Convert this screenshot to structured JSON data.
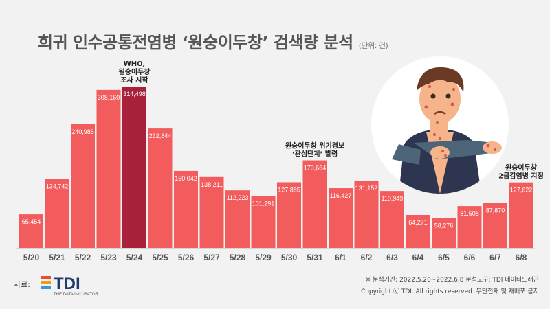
{
  "header": {
    "title": "희귀 인수공통전염병 ‘원숭이두창’ 검색량 분석",
    "unit": "(단위: 건)"
  },
  "chart_data": {
    "type": "bar",
    "title": "희귀 인수공통전염병 ‘원숭이두창’ 검색량 분석",
    "unit": "(단위: 건)",
    "categories": [
      "5/20",
      "5/21",
      "5/22",
      "5/23",
      "5/24",
      "5/25",
      "5/26",
      "5/27",
      "5/28",
      "5/29",
      "5/30",
      "5/31",
      "6/1",
      "6/2",
      "6/3",
      "6/4",
      "6/5",
      "6/6",
      "6/7",
      "6/8"
    ],
    "values": [
      65454,
      134742,
      240985,
      308160,
      314498,
      232844,
      150042,
      138211,
      112223,
      101291,
      127885,
      170664,
      116427,
      131152,
      110949,
      64271,
      58276,
      81508,
      87870,
      127622
    ],
    "value_labels": [
      "65,454",
      "134,742",
      "240,985",
      "308,160",
      "314,498",
      "232,844",
      "150,042",
      "138,211",
      "112,223",
      "101,291",
      "127,885",
      "170,664",
      "116,427",
      "131,152",
      "110,949",
      "64,271",
      "58,276",
      "81,508",
      "87,870",
      "127,622"
    ],
    "highlight_index": 4,
    "colors": {
      "bar": "#f25c5c",
      "highlight": "#a8213a",
      "axis_label": "#555555",
      "value_label": "#ffffff"
    },
    "annotations": [
      {
        "index": 4,
        "lines": [
          "WHO,",
          "원숭이두창",
          "조사 시작"
        ]
      },
      {
        "index": 11,
        "lines": [
          "원숭이두창 위기경보",
          "‘관심단계’ 발령"
        ]
      },
      {
        "index": 19,
        "lines": [
          "원숭이두창",
          "2급감염병 지정"
        ]
      }
    ],
    "ylim": [
      0,
      320000
    ],
    "grid": false,
    "legend": "none"
  },
  "source": {
    "label": "자료:",
    "logo_text": "TDI",
    "logo_sub": "THE DATA INCUBATOR"
  },
  "footer": {
    "line1": "※ 분석기간: 2022.5.20~2022.6.8   분석도구: TDI 데이터드래곤",
    "line2": "Copyright ⓒ TDI. All rights reserved. 무단전재 및 재배포 금지"
  },
  "illustration": {
    "icon": "sick-man-with-rash-icon"
  }
}
